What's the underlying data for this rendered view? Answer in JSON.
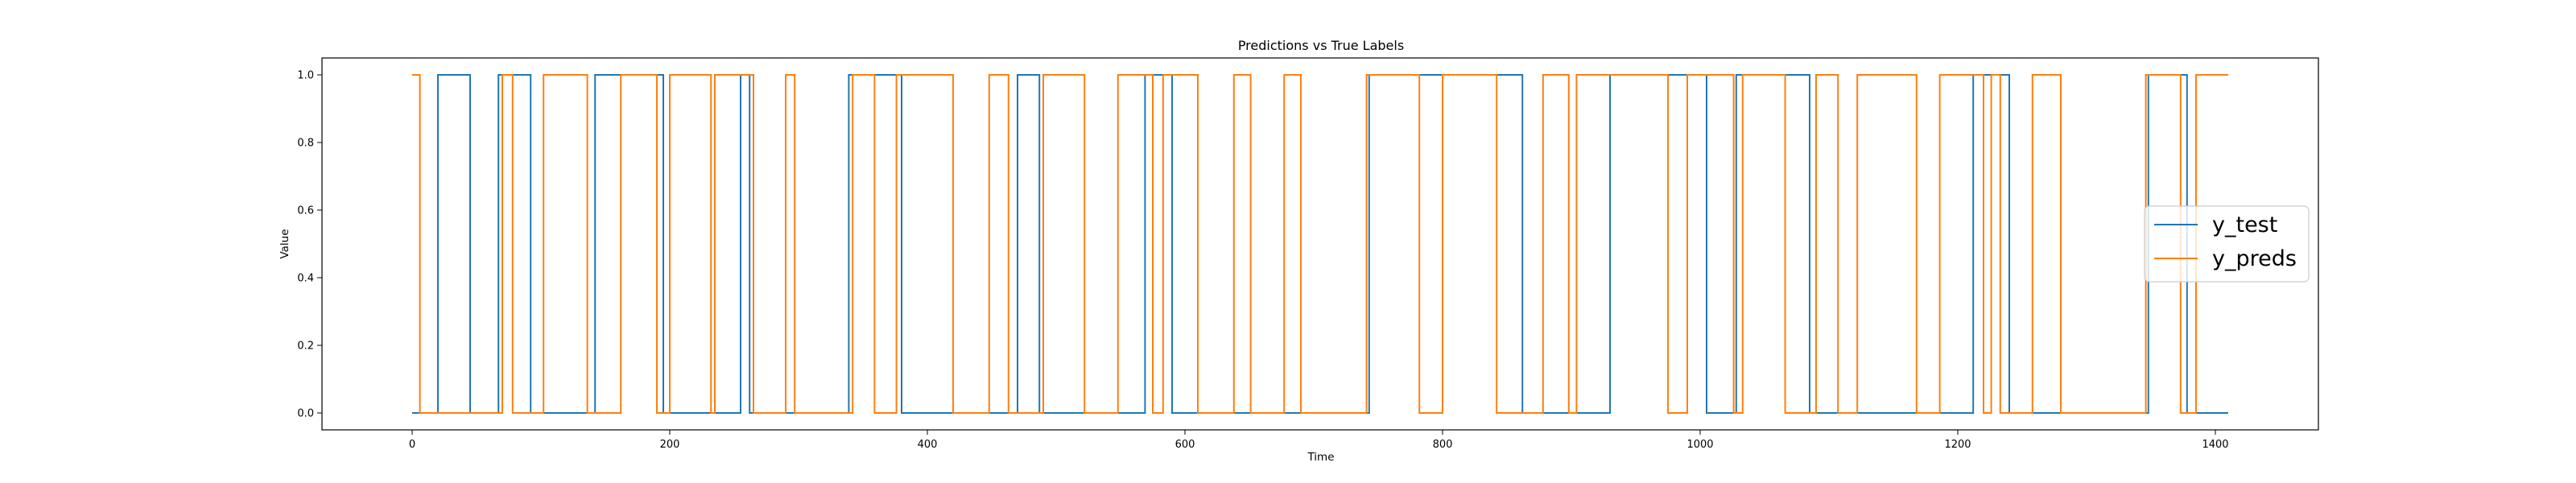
{
  "chart_data": {
    "type": "line",
    "title": "Predictions vs True Labels",
    "xlabel": "Time",
    "ylabel": "Value",
    "xlim": [
      -70,
      1480
    ],
    "ylim": [
      -0.05,
      1.05
    ],
    "xticks": [
      "0",
      "200",
      "400",
      "600",
      "800",
      "1000",
      "1200",
      "1400"
    ],
    "xtick_values": [
      0,
      200,
      400,
      600,
      800,
      1000,
      1200,
      1400
    ],
    "yticks": [
      "0.0",
      "0.2",
      "0.4",
      "0.6",
      "0.8",
      "1.0"
    ],
    "ytick_values": [
      0.0,
      0.2,
      0.4,
      0.6,
      0.8,
      1.0
    ],
    "grid": false,
    "legend_position": "center-right",
    "series": [
      {
        "name": "y_test",
        "color": "#1f77b4",
        "x_end": 1410,
        "start_value": 0,
        "transitions": [
          20,
          45,
          67,
          92,
          142,
          195,
          255,
          262,
          339,
          380,
          470,
          487,
          569,
          590,
          743,
          862,
          930,
          1005,
          1028,
          1085,
          1212,
          1240,
          1348,
          1378
        ]
      },
      {
        "name": "y_preds",
        "color": "#ff7f0e",
        "x_end": 1410,
        "start_value": 1,
        "transitions": [
          6,
          70,
          78,
          102,
          136,
          162,
          190,
          200,
          232,
          235,
          265,
          290,
          297,
          342,
          359,
          376,
          420,
          448,
          463,
          490,
          522,
          548,
          575,
          583,
          610,
          638,
          651,
          677,
          690,
          741,
          782,
          800,
          842,
          878,
          898,
          904,
          975,
          990,
          1026,
          1033,
          1066,
          1090,
          1107,
          1122,
          1168,
          1186,
          1220,
          1226,
          1233,
          1258,
          1280,
          1346,
          1373,
          1385
        ]
      }
    ]
  }
}
